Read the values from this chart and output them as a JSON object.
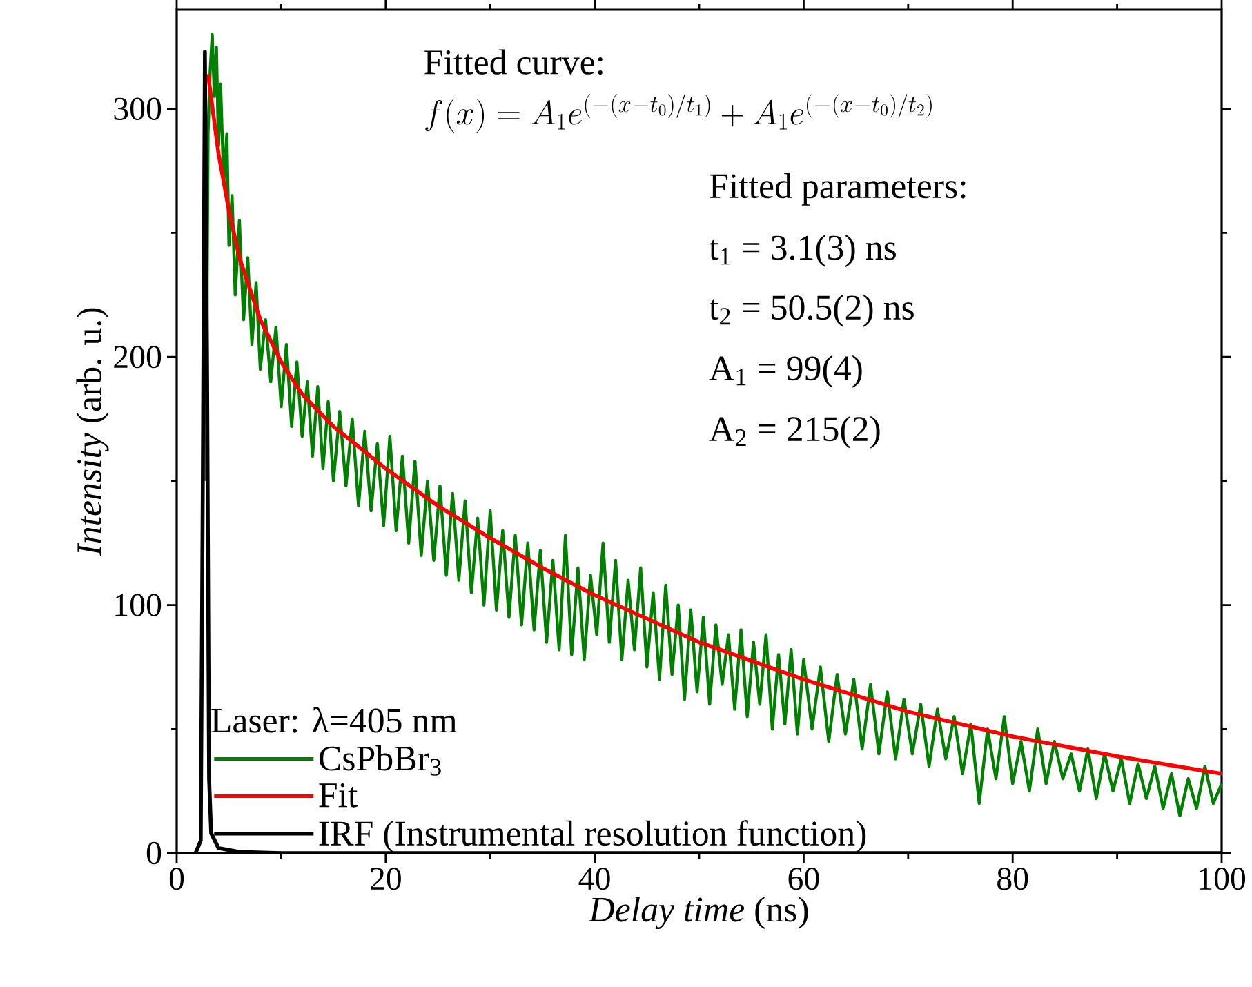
{
  "chart_data": {
    "type": "line",
    "xlabel": "*Delay time* (ns)",
    "ylabel": "*Intensity* (arb. u.)",
    "xlim": [
      0,
      100
    ],
    "ylim": [
      0,
      340
    ],
    "xticks": [
      0,
      20,
      40,
      60,
      80,
      100
    ],
    "yticks": [
      0,
      100,
      200,
      300
    ],
    "legend": "bottom left",
    "legend_title": "Laser: λ=405 nm",
    "annotations": [
      "Fitted curve:",
      "f(x)=A_{1}e^{(-(x-t_{0})/t_{1})}+A_{1}e^{(-(x-t_{0})/t_{2})}",
      "Fitted parameters:",
      "t$_{1}$ = 3.1(3) ns",
      "t$_{2}$ = 50.5(2) ns",
      "A$_{1}$ = 99(4)",
      "A$_{2}$ = 215(2)"
    ],
    "series": [
      {
        "name": "CsPbBr$_{3}$",
        "color": "#008000",
        "x": [
          2.8,
          3.0,
          3.2,
          3.4,
          3.6,
          3.8,
          4.0,
          4.2,
          4.5,
          4.8,
          5.0,
          5.3,
          5.6,
          6.0,
          6.4,
          6.8,
          7.2,
          7.6,
          8.0,
          8.5,
          9.0,
          9.5,
          10,
          10.5,
          11,
          11.5,
          12,
          12.5,
          13,
          13.5,
          14,
          14.5,
          15,
          15.6,
          16.2,
          16.8,
          17.4,
          18,
          18.6,
          19.2,
          19.8,
          20.4,
          21,
          21.6,
          22.2,
          22.8,
          23.4,
          24,
          24.6,
          25.2,
          25.8,
          26.4,
          27,
          27.6,
          28.2,
          28.8,
          29.4,
          30,
          30.6,
          31.2,
          31.8,
          32.4,
          33,
          33.6,
          34.2,
          34.8,
          35.4,
          36,
          36.6,
          37.2,
          37.8,
          38.4,
          39,
          39.6,
          40.2,
          40.8,
          41.4,
          42,
          42.6,
          43.2,
          43.8,
          44.4,
          45,
          45.6,
          46.2,
          46.8,
          47.4,
          48,
          48.6,
          49.2,
          49.8,
          50.4,
          51,
          51.6,
          52.2,
          52.8,
          53.4,
          54,
          54.6,
          55.2,
          55.8,
          56.4,
          57,
          57.6,
          58.2,
          58.8,
          59.4,
          60,
          60.8,
          61.6,
          62.4,
          63.2,
          64,
          64.8,
          65.6,
          66.4,
          67.2,
          68,
          68.8,
          69.6,
          70.4,
          71.2,
          72,
          72.8,
          73.6,
          74.4,
          75.2,
          76,
          76.8,
          77.6,
          78.4,
          79.2,
          80,
          80.8,
          81.6,
          82.4,
          83.2,
          84,
          84.8,
          85.6,
          86.4,
          87.2,
          88,
          88.8,
          89.6,
          90.4,
          91.2,
          92,
          92.8,
          93.6,
          94.4,
          95.2,
          96,
          96.8,
          97.6,
          98.4,
          99.2,
          100
        ],
        "values": [
          150,
          290,
          315,
          330,
          305,
          325,
          285,
          310,
          270,
          290,
          245,
          265,
          225,
          255,
          215,
          240,
          205,
          230,
          195,
          215,
          190,
          212,
          180,
          205,
          172,
          198,
          168,
          190,
          160,
          188,
          155,
          182,
          150,
          178,
          148,
          175,
          140,
          170,
          138,
          165,
          132,
          168,
          130,
          160,
          125,
          158,
          120,
          150,
          118,
          148,
          112,
          145,
          110,
          142,
          105,
          135,
          100,
          138,
          98,
          130,
          95,
          128,
          92,
          125,
          90,
          122,
          85,
          118,
          82,
          128,
          80,
          115,
          78,
          112,
          88,
          125,
          85,
          118,
          78,
          110,
          82,
          115,
          75,
          105,
          70,
          108,
          72,
          100,
          62,
          98,
          65,
          95,
          60,
          92,
          68,
          88,
          58,
          90,
          55,
          85,
          60,
          88,
          50,
          80,
          52,
          82,
          48,
          78,
          50,
          75,
          45,
          72,
          48,
          70,
          42,
          68,
          40,
          65,
          38,
          62,
          40,
          60,
          35,
          58,
          38,
          55,
          32,
          52,
          20,
          50,
          30,
          55,
          28,
          45,
          25,
          50,
          28,
          45,
          30,
          40,
          25,
          42,
          22,
          40,
          25,
          38,
          20,
          36,
          22,
          35,
          18,
          32,
          15,
          30,
          18,
          35,
          20,
          28
        ]
      },
      {
        "name": "Fit",
        "color": "#ff0000",
        "x": [
          3,
          4,
          5,
          6,
          8,
          10,
          12,
          15,
          20,
          25,
          30,
          35,
          40,
          50,
          60,
          70,
          80,
          90,
          100
        ],
        "values": [
          314,
          282,
          259,
          240,
          215,
          198,
          185,
          172,
          155,
          140,
          127,
          115,
          104,
          85,
          70,
          57,
          47,
          39,
          32
        ]
      },
      {
        "name": "IRF (Instrumental resolution function)",
        "color": "#000000",
        "x": [
          1.8,
          2.3,
          2.5,
          2.7,
          2.9,
          3.1,
          3.3,
          4,
          6,
          10,
          100
        ],
        "values": [
          0,
          5,
          150,
          323,
          200,
          30,
          8,
          2,
          0.5,
          0,
          0
        ]
      }
    ]
  }
}
